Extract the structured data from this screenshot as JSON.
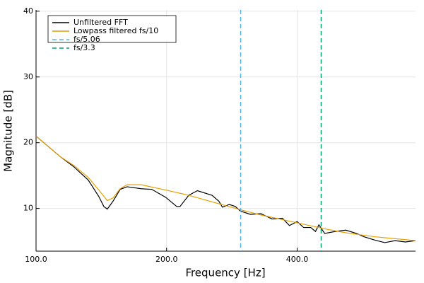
{
  "chart_data": {
    "type": "line",
    "xlabel": "Frequency [Hz]",
    "ylabel": "Magnitude [dB]",
    "xscale": "log",
    "xlim": [
      100,
      750
    ],
    "ylim": [
      3.5,
      40.2
    ],
    "xticks": [
      {
        "value": 100,
        "label": "100.0"
      },
      {
        "value": 200,
        "label": "200.0"
      },
      {
        "value": 400,
        "label": "400.0"
      }
    ],
    "yticks": [
      10,
      20,
      30,
      40
    ],
    "grid": true,
    "legend": "top-left",
    "series": [
      {
        "name": "Unfiltered FFT",
        "color": "#000000",
        "x": [
          100,
          113.6,
          122.4,
          132,
          139.6,
          143.3,
          146,
          150.5,
          156.3,
          162.2,
          174.8,
          184.9,
          199,
          211,
          214.8,
          225,
          235.6,
          254.6,
          264,
          269,
          279,
          288,
          296,
          312,
          330,
          350,
          370,
          384,
          400,
          414,
          430,
          441,
          449,
          463,
          490,
          518,
          548,
          570,
          603,
          637,
          673,
          711,
          750
        ],
        "values": [
          21.0,
          17.9,
          16.3,
          14.3,
          11.8,
          10.3,
          9.9,
          11.1,
          12.9,
          13.3,
          13.0,
          12.9,
          11.7,
          10.3,
          10.3,
          12.0,
          12.7,
          12.0,
          11.1,
          10.2,
          10.6,
          10.3,
          9.6,
          9.1,
          9.2,
          8.4,
          8.5,
          7.4,
          8.0,
          7.1,
          7.1,
          6.5,
          7.5,
          6.2,
          6.5,
          6.7,
          6.2,
          5.7,
          5.2,
          4.8,
          5.1,
          4.9,
          5.1
        ]
      },
      {
        "name": "Lowpass filtered fs/10",
        "color": "#e69f00",
        "x": [
          100,
          113.6,
          122.4,
          132,
          139.6,
          146,
          150.5,
          156.3,
          162.2,
          174.8,
          199,
          225,
          254.6,
          296,
          330,
          370,
          414,
          463,
          518,
          603,
          750
        ],
        "values": [
          21.0,
          17.9,
          16.5,
          14.7,
          12.8,
          11.2,
          11.6,
          13.0,
          13.6,
          13.6,
          12.8,
          12.0,
          11.0,
          9.8,
          9.0,
          8.3,
          7.6,
          6.9,
          6.3,
          5.7,
          5.1
        ]
      }
    ],
    "vlines": [
      {
        "name": "fs/5.06",
        "color": "#56b4e9",
        "x": 296.4
      },
      {
        "name": "fs/3.3",
        "color": "#009e73",
        "x": 454.5
      }
    ]
  }
}
